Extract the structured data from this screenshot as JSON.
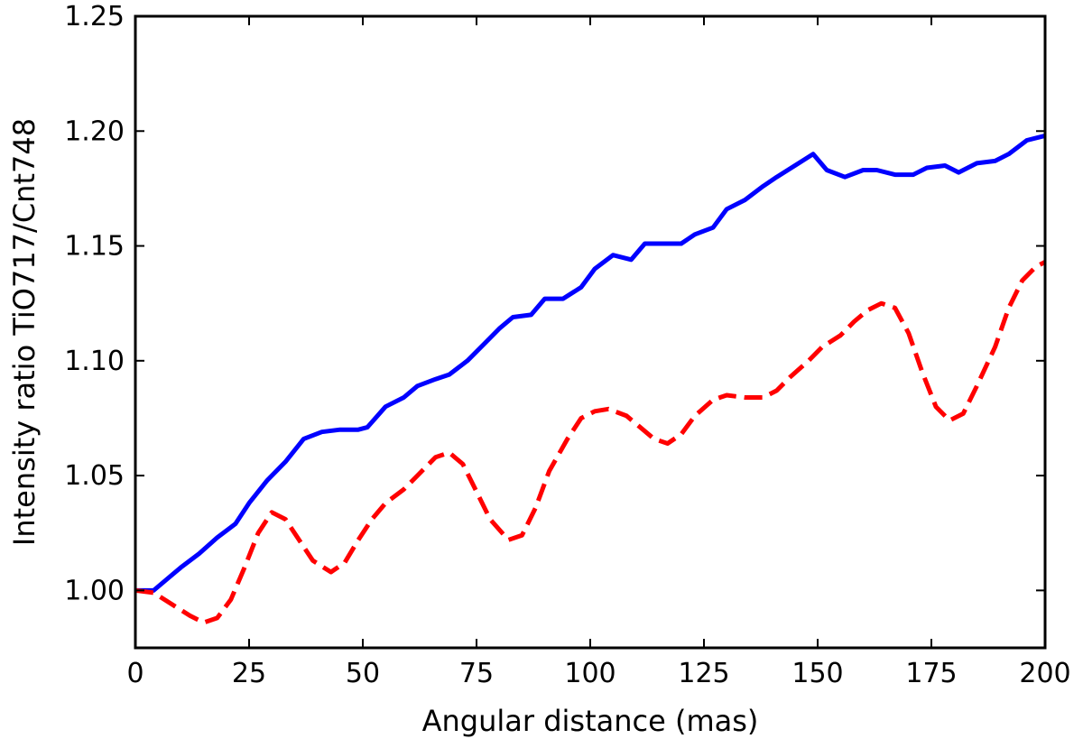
{
  "chart_data": {
    "type": "line",
    "title": "",
    "xlabel": "Angular distance (mas)",
    "ylabel": "Intensity ratio TiO717/Cnt748",
    "xlim": [
      0,
      200
    ],
    "ylim": [
      0.975,
      1.25
    ],
    "x_ticks": [
      0,
      25,
      50,
      75,
      100,
      125,
      150,
      175,
      200
    ],
    "x_tick_labels": [
      "0",
      "25",
      "50",
      "75",
      "100",
      "125",
      "150",
      "175",
      "200"
    ],
    "y_ticks": [
      1.0,
      1.05,
      1.1,
      1.15,
      1.2,
      1.25
    ],
    "y_tick_labels": [
      "1.00",
      "1.05",
      "1.10",
      "1.15",
      "1.20",
      "1.25"
    ],
    "grid": false,
    "series": [
      {
        "color": "#0000ff",
        "style": "solid",
        "points": [
          [
            0,
            1.0
          ],
          [
            4,
            1.0
          ],
          [
            7,
            1.005
          ],
          [
            10,
            1.01
          ],
          [
            14,
            1.016
          ],
          [
            18,
            1.023
          ],
          [
            22,
            1.029
          ],
          [
            25,
            1.038
          ],
          [
            29,
            1.048
          ],
          [
            33,
            1.056
          ],
          [
            37,
            1.066
          ],
          [
            41,
            1.069
          ],
          [
            45,
            1.07
          ],
          [
            49,
            1.07
          ],
          [
            51,
            1.071
          ],
          [
            55,
            1.08
          ],
          [
            59,
            1.084
          ],
          [
            62,
            1.089
          ],
          [
            66,
            1.092
          ],
          [
            69,
            1.094
          ],
          [
            73,
            1.1
          ],
          [
            77,
            1.108
          ],
          [
            80,
            1.114
          ],
          [
            83,
            1.119
          ],
          [
            87,
            1.12
          ],
          [
            90,
            1.127
          ],
          [
            94,
            1.127
          ],
          [
            98,
            1.132
          ],
          [
            101,
            1.14
          ],
          [
            105,
            1.146
          ],
          [
            109,
            1.144
          ],
          [
            112,
            1.151
          ],
          [
            116,
            1.151
          ],
          [
            120,
            1.151
          ],
          [
            123,
            1.155
          ],
          [
            127,
            1.158
          ],
          [
            130,
            1.166
          ],
          [
            134,
            1.17
          ],
          [
            138,
            1.176
          ],
          [
            141,
            1.18
          ],
          [
            145,
            1.185
          ],
          [
            149,
            1.19
          ],
          [
            152,
            1.183
          ],
          [
            156,
            1.18
          ],
          [
            160,
            1.183
          ],
          [
            163,
            1.183
          ],
          [
            167,
            1.181
          ],
          [
            171,
            1.181
          ],
          [
            174,
            1.184
          ],
          [
            178,
            1.185
          ],
          [
            181,
            1.182
          ],
          [
            185,
            1.186
          ],
          [
            189,
            1.187
          ],
          [
            192,
            1.19
          ],
          [
            196,
            1.196
          ],
          [
            200,
            1.198
          ]
        ]
      },
      {
        "color": "#ff0000",
        "style": "dashed",
        "points": [
          [
            0,
            1.0
          ],
          [
            4,
            0.999
          ],
          [
            8,
            0.994
          ],
          [
            12,
            0.989
          ],
          [
            15,
            0.986
          ],
          [
            18,
            0.988
          ],
          [
            21,
            0.996
          ],
          [
            24,
            1.01
          ],
          [
            27,
            1.025
          ],
          [
            30,
            1.034
          ],
          [
            33,
            1.031
          ],
          [
            36,
            1.022
          ],
          [
            39,
            1.013
          ],
          [
            43,
            1.008
          ],
          [
            46,
            1.012
          ],
          [
            49,
            1.022
          ],
          [
            52,
            1.031
          ],
          [
            55,
            1.038
          ],
          [
            59,
            1.044
          ],
          [
            62,
            1.05
          ],
          [
            66,
            1.058
          ],
          [
            69,
            1.06
          ],
          [
            72,
            1.055
          ],
          [
            75,
            1.043
          ],
          [
            78,
            1.031
          ],
          [
            82,
            1.022
          ],
          [
            85,
            1.024
          ],
          [
            88,
            1.036
          ],
          [
            91,
            1.052
          ],
          [
            95,
            1.066
          ],
          [
            98,
            1.075
          ],
          [
            101,
            1.078
          ],
          [
            104,
            1.079
          ],
          [
            108,
            1.076
          ],
          [
            111,
            1.071
          ],
          [
            114,
            1.066
          ],
          [
            117,
            1.064
          ],
          [
            120,
            1.068
          ],
          [
            123,
            1.076
          ],
          [
            127,
            1.083
          ],
          [
            130,
            1.085
          ],
          [
            134,
            1.084
          ],
          [
            138,
            1.084
          ],
          [
            141,
            1.087
          ],
          [
            144,
            1.093
          ],
          [
            148,
            1.1
          ],
          [
            151,
            1.106
          ],
          [
            155,
            1.111
          ],
          [
            158,
            1.117
          ],
          [
            161,
            1.122
          ],
          [
            164,
            1.125
          ],
          [
            167,
            1.123
          ],
          [
            170,
            1.112
          ],
          [
            173,
            1.095
          ],
          [
            176,
            1.08
          ],
          [
            179,
            1.074
          ],
          [
            182,
            1.077
          ],
          [
            185,
            1.089
          ],
          [
            189,
            1.106
          ],
          [
            192,
            1.123
          ],
          [
            195,
            1.135
          ],
          [
            198,
            1.141
          ],
          [
            200,
            1.143
          ]
        ]
      }
    ]
  }
}
